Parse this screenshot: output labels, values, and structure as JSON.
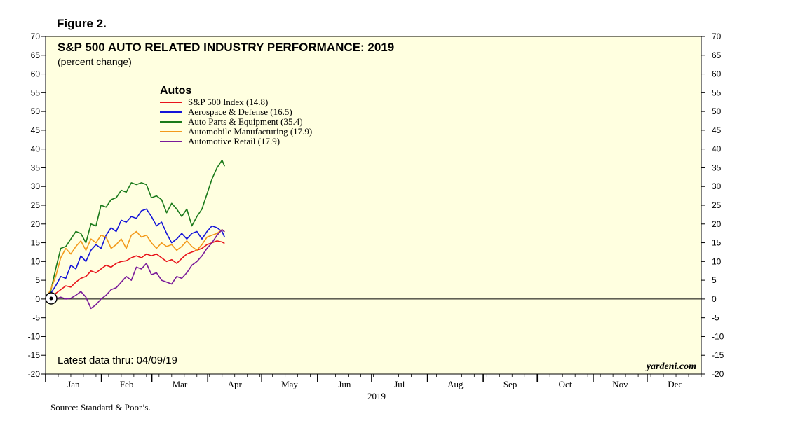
{
  "figure_label": "Figure 2.",
  "source": "Source: Standard & Poor’s.",
  "watermark": "yardeni.com",
  "note": "Latest data thru: 04/09/19",
  "colors": {
    "plot_bg": "#ffffe0",
    "sp500": "#e8141b",
    "aerospace": "#1414d8",
    "autoparts": "#1a7a1a",
    "automfg": "#f39a1c",
    "retail": "#7a1a9a"
  },
  "chart_data": {
    "type": "line",
    "title": "S&P 500 AUTO RELATED INDUSTRY PERFORMANCE: 2019",
    "subtitle": "(percent change)",
    "legend_title": "Autos",
    "xlabel": "2019",
    "ylabel": "",
    "ylim": [
      -20,
      70
    ],
    "xlim_weeks": [
      0,
      52
    ],
    "grid": false,
    "legend_position": "top-left",
    "x_tick_labels": [
      "Jan",
      "Feb",
      "Mar",
      "Apr",
      "May",
      "Jun",
      "Jul",
      "Aug",
      "Sep",
      "Oct",
      "Nov",
      "Dec"
    ],
    "y_ticks": [
      -20,
      -15,
      -10,
      -5,
      0,
      5,
      10,
      15,
      20,
      25,
      30,
      35,
      40,
      45,
      50,
      55,
      60,
      65,
      70
    ],
    "x_unit": "weeks since 2018-12-31",
    "series": [
      {
        "name": "S&P 500 Index (14.8)",
        "color_key": "sp500",
        "x": [
          0,
          0.4,
          0.8,
          1.2,
          1.6,
          2.0,
          2.4,
          2.8,
          3.2,
          3.6,
          4.0,
          4.4,
          4.8,
          5.2,
          5.6,
          6.0,
          6.4,
          6.8,
          7.2,
          7.6,
          8.0,
          8.4,
          8.8,
          9.2,
          9.6,
          10.0,
          10.4,
          10.8,
          11.2,
          11.6,
          12.0,
          12.4,
          12.8,
          13.2,
          13.6,
          14.0,
          14.2
        ],
        "y": [
          0,
          0.5,
          1.5,
          2.5,
          3.5,
          3.2,
          4.5,
          5.5,
          6.0,
          7.5,
          7.0,
          8.0,
          9.0,
          8.5,
          9.5,
          10.0,
          10.2,
          11.0,
          11.5,
          11.0,
          12.0,
          11.5,
          12.0,
          11.0,
          10.0,
          10.5,
          9.5,
          10.8,
          12.0,
          12.5,
          13.0,
          13.5,
          14.5,
          15.0,
          15.5,
          15.2,
          14.8
        ]
      },
      {
        "name": "Aerospace & Defense (16.5)",
        "color_key": "aerospace",
        "x": [
          0,
          0.4,
          0.8,
          1.2,
          1.6,
          2.0,
          2.4,
          2.8,
          3.2,
          3.6,
          4.0,
          4.4,
          4.8,
          5.2,
          5.6,
          6.0,
          6.4,
          6.8,
          7.2,
          7.6,
          8.0,
          8.4,
          8.8,
          9.2,
          9.6,
          10.0,
          10.4,
          10.8,
          11.2,
          11.6,
          12.0,
          12.4,
          12.8,
          13.2,
          13.6,
          14.0,
          14.2
        ],
        "y": [
          0,
          1.5,
          3.5,
          6.0,
          5.5,
          9.0,
          8.0,
          11.5,
          10.0,
          13.0,
          14.5,
          13.5,
          17.0,
          19.0,
          18.0,
          21.0,
          20.5,
          22.0,
          21.5,
          23.5,
          24.0,
          22.0,
          19.5,
          20.5,
          17.5,
          15.0,
          16.0,
          17.5,
          16.0,
          17.5,
          18.0,
          16.0,
          18.0,
          19.5,
          19.0,
          18.0,
          16.5
        ]
      },
      {
        "name": "Auto Parts & Equipment (35.4)",
        "color_key": "autoparts",
        "x": [
          0,
          0.4,
          0.8,
          1.2,
          1.6,
          2.0,
          2.4,
          2.8,
          3.2,
          3.6,
          4.0,
          4.4,
          4.8,
          5.2,
          5.6,
          6.0,
          6.4,
          6.8,
          7.2,
          7.6,
          8.0,
          8.4,
          8.8,
          9.2,
          9.6,
          10.0,
          10.4,
          10.8,
          11.2,
          11.6,
          12.0,
          12.4,
          12.8,
          13.2,
          13.6,
          14.0,
          14.2
        ],
        "y": [
          0,
          2.0,
          8.0,
          13.5,
          14.0,
          16.0,
          18.0,
          17.5,
          15.0,
          20.0,
          19.5,
          25.0,
          24.5,
          26.5,
          27.0,
          29.0,
          28.5,
          31.0,
          30.5,
          31.0,
          30.5,
          27.0,
          27.5,
          26.5,
          23.0,
          25.5,
          24.0,
          22.0,
          24.0,
          19.5,
          22.0,
          24.0,
          28.0,
          32.0,
          35.0,
          37.0,
          35.4
        ]
      },
      {
        "name": "Automobile Manufacturing (17.9)",
        "color_key": "automfg",
        "x": [
          0,
          0.4,
          0.8,
          1.2,
          1.6,
          2.0,
          2.4,
          2.8,
          3.2,
          3.6,
          4.0,
          4.4,
          4.8,
          5.2,
          5.6,
          6.0,
          6.4,
          6.8,
          7.2,
          7.6,
          8.0,
          8.4,
          8.8,
          9.2,
          9.6,
          10.0,
          10.4,
          10.8,
          11.2,
          11.6,
          12.0,
          12.4,
          12.8,
          13.2,
          13.6,
          14.0,
          14.2
        ],
        "y": [
          0,
          2.5,
          6.0,
          11.0,
          13.5,
          12.0,
          14.0,
          15.5,
          13.0,
          16.0,
          15.0,
          17.0,
          16.5,
          13.5,
          14.5,
          16.0,
          13.5,
          17.0,
          18.0,
          16.5,
          17.0,
          15.0,
          13.5,
          15.0,
          14.0,
          14.5,
          13.0,
          14.0,
          15.5,
          14.0,
          13.0,
          14.5,
          16.5,
          17.0,
          17.5,
          18.5,
          17.9
        ]
      },
      {
        "name": "Automotive Retail (17.9)",
        "color_key": "retail",
        "x": [
          0,
          0.4,
          0.8,
          1.2,
          1.6,
          2.0,
          2.4,
          2.8,
          3.2,
          3.6,
          4.0,
          4.4,
          4.8,
          5.2,
          5.6,
          6.0,
          6.4,
          6.8,
          7.2,
          7.6,
          8.0,
          8.4,
          8.8,
          9.2,
          9.6,
          10.0,
          10.4,
          10.8,
          11.2,
          11.6,
          12.0,
          12.4,
          12.8,
          13.2,
          13.6,
          14.0,
          14.2
        ],
        "y": [
          0,
          -0.5,
          0,
          0.5,
          0,
          0.2,
          1.0,
          2.0,
          0.5,
          -2.5,
          -1.5,
          0,
          1.0,
          2.5,
          3.0,
          4.5,
          6.0,
          5.0,
          8.5,
          8.0,
          9.5,
          6.5,
          7.0,
          5.0,
          4.5,
          4.0,
          6.0,
          5.5,
          7.0,
          9.0,
          10.0,
          11.5,
          13.5,
          15.0,
          17.0,
          18.5,
          17.9
        ]
      }
    ]
  }
}
